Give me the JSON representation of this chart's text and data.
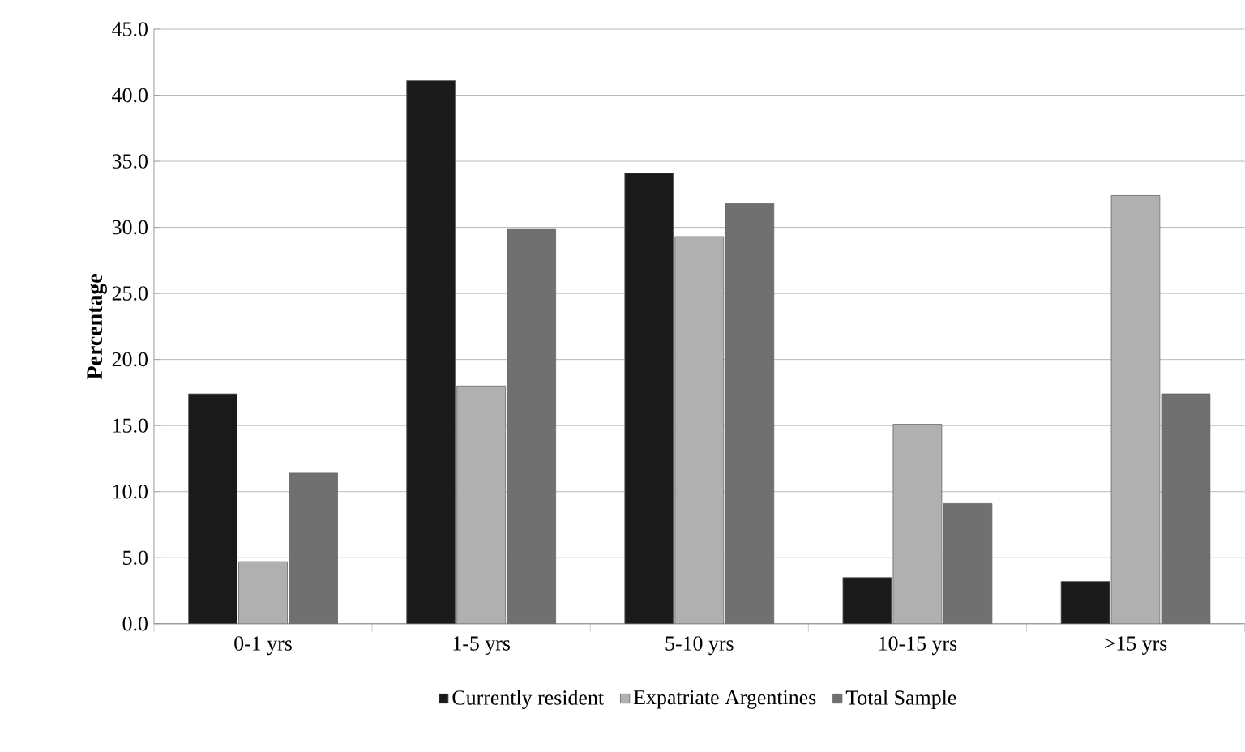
{
  "chart_data": {
    "type": "bar",
    "ylabel": "Percentage",
    "categories": [
      "0-1 yrs",
      "1-5 yrs",
      "5-10 yrs",
      "10-15 yrs",
      ">15 yrs"
    ],
    "series": [
      {
        "name": "Currently resident",
        "color": "#1a1a1a",
        "values": [
          17.4,
          41.1,
          34.1,
          3.5,
          3.2
        ]
      },
      {
        "name": "Expatriate Argentines",
        "color": "#b0b0b0",
        "values": [
          4.7,
          18.0,
          29.3,
          15.1,
          32.4
        ]
      },
      {
        "name": "Total Sample",
        "color": "#707070",
        "values": [
          11.4,
          29.9,
          31.8,
          9.1,
          17.4
        ]
      }
    ],
    "ylim": [
      0,
      45
    ],
    "yticks": [
      {
        "value": 0,
        "label": "0.0"
      },
      {
        "value": 5,
        "label": "5.0"
      },
      {
        "value": 10,
        "label": "10.0"
      },
      {
        "value": 15,
        "label": "15.0"
      },
      {
        "value": 20,
        "label": "20.0"
      },
      {
        "value": 25,
        "label": "25.0"
      },
      {
        "value": 30,
        "label": "30.0"
      },
      {
        "value": 35,
        "label": "35.0"
      },
      {
        "value": 40,
        "label": "40.0"
      },
      {
        "value": 45,
        "label": "45.0"
      }
    ],
    "grid": "y",
    "legend": "bottom"
  }
}
